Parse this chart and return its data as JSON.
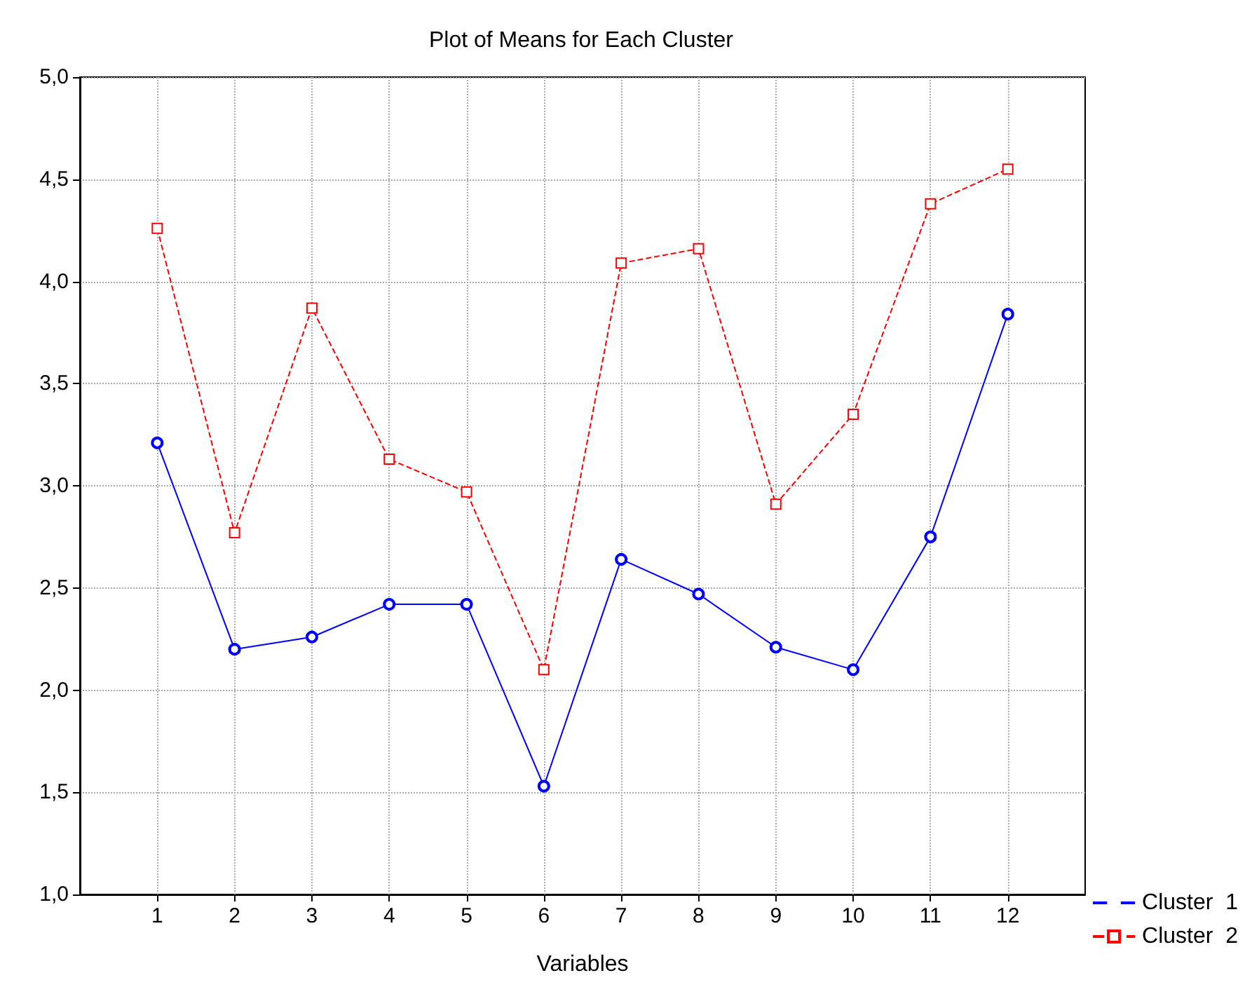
{
  "chart_data": {
    "type": "line",
    "title": "Plot of Means for Each Cluster",
    "xlabel": "Variables",
    "x": [
      1,
      2,
      3,
      4,
      5,
      6,
      7,
      8,
      9,
      10,
      11,
      12
    ],
    "xlim": [
      0,
      13
    ],
    "xticks": [
      1,
      2,
      3,
      4,
      5,
      6,
      7,
      8,
      9,
      10,
      11,
      12
    ],
    "ylim": [
      1,
      5
    ],
    "yticks": [
      {
        "value": 1,
        "label": "1,0"
      },
      {
        "value": 1.5,
        "label": "1,5"
      },
      {
        "value": 2,
        "label": "2,0"
      },
      {
        "value": 2.5,
        "label": "2,5"
      },
      {
        "value": 3,
        "label": "3,0"
      },
      {
        "value": 3.5,
        "label": "3,5"
      },
      {
        "value": 4,
        "label": "4,0"
      },
      {
        "value": 4.5,
        "label": "4,5"
      },
      {
        "value": 5,
        "label": "5,0"
      }
    ],
    "grid": true,
    "legend": "bottom right",
    "series": [
      {
        "name": "Cluster  1",
        "color": "#0000ff",
        "marker": "circle",
        "line_style": "solid",
        "values": [
          3.21,
          2.2,
          2.26,
          2.42,
          2.42,
          1.53,
          2.64,
          2.47,
          2.21,
          2.1,
          2.75,
          3.84
        ]
      },
      {
        "name": "Cluster  2",
        "color": "#ff0000",
        "marker": "square",
        "line_style": "dashed",
        "values": [
          4.26,
          2.77,
          3.87,
          3.13,
          2.97,
          2.1,
          4.09,
          4.16,
          2.91,
          3.35,
          4.38,
          4.55
        ]
      }
    ]
  }
}
